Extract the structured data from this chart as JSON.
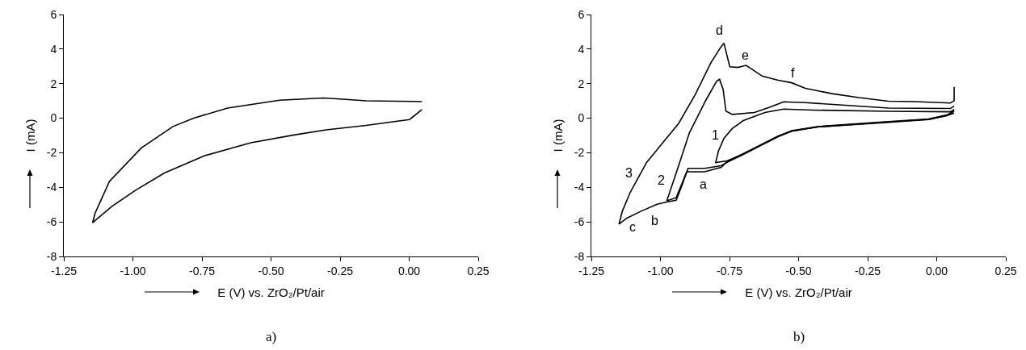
{
  "chart_data": [
    {
      "type": "line",
      "xlabel": "E (V) vs. ZrO₂/Pt/air",
      "ylabel": "I (mA)",
      "xlim": [
        -1.25,
        0.25
      ],
      "xticks": [
        -1.25,
        {
          "value": -1,
          "label": "-1.00"
        },
        -0.75,
        {
          "value": -0.5,
          "label": "-0.50"
        },
        -0.25,
        {
          "value": 0,
          "label": "0.00"
        },
        0.25
      ],
      "ylim": [
        -8,
        6
      ],
      "yticks": [
        -8,
        -6,
        -4,
        -2,
        0,
        2,
        4,
        6
      ],
      "series": [
        {
          "color": "#000000",
          "x": [
            0.046,
            -0.156,
            -0.229,
            -0.31,
            -0.469,
            -0.657,
            -0.78,
            -0.855,
            -0.97,
            -1.085,
            -1.137,
            -1.146,
            -1.075,
            -0.99,
            -0.886,
            -0.74,
            -0.573,
            -0.417,
            -0.3,
            -0.156,
            0.001,
            0.046
          ],
          "values": [
            0.96,
            1.01,
            1.09,
            1.17,
            1.04,
            0.59,
            0.0,
            -0.48,
            -1.73,
            -3.66,
            -5.5,
            -6.05,
            -5.09,
            -4.17,
            -3.17,
            -2.17,
            -1.42,
            -0.97,
            -0.67,
            -0.42,
            -0.08,
            0.5
          ]
        }
      ],
      "annotations": [
        "a)"
      ]
    },
    {
      "type": "line",
      "xlabel": "E (V) vs. ZrO₂/Pt/air",
      "ylabel": "I (mA)",
      "xlim": [
        -1.25,
        0.25
      ],
      "xticks": [
        -1.25,
        {
          "value": -1,
          "label": "-1.00"
        },
        -0.75,
        {
          "value": -0.5,
          "label": "-0.50"
        },
        -0.25,
        {
          "value": 0,
          "label": "0.00"
        },
        0.25
      ],
      "ylim": [
        -8,
        6
      ],
      "yticks": [
        -8,
        -6,
        -4,
        -2,
        0,
        2,
        4,
        6
      ],
      "series": [
        {
          "color": "#000000",
          "x": [
            0.063,
            0.039,
            -0.029,
            -0.175,
            -0.428,
            -0.525,
            -0.574,
            -0.642,
            -0.7,
            -0.759,
            -0.8,
            -0.79,
            -0.77,
            -0.74,
            -0.7,
            -0.622,
            -0.554,
            -0.45,
            -0.175,
            0.049,
            0.063
          ],
          "values": [
            0.3,
            0.17,
            -0.06,
            -0.22,
            -0.5,
            -0.74,
            -1.05,
            -1.6,
            -2.08,
            -2.47,
            -2.56,
            -1.9,
            -1.16,
            -0.6,
            -0.14,
            0.33,
            0.53,
            0.47,
            0.4,
            0.37,
            0.5
          ]
        },
        {
          "color": "#000000",
          "x": [
            0.063,
            0.039,
            -0.029,
            -0.175,
            -0.428,
            -0.525,
            -0.574,
            -0.642,
            -0.7,
            -0.759,
            -0.78,
            -0.84,
            -0.905,
            -0.925,
            -0.943,
            -0.977,
            -0.94,
            -0.895,
            -0.836,
            -0.797,
            -0.786,
            -0.773,
            -0.763,
            -0.74,
            -0.66,
            -0.603,
            -0.554,
            -0.476,
            -0.175,
            0.049,
            0.063
          ],
          "values": [
            0.4,
            0.2,
            -0.04,
            -0.2,
            -0.48,
            -0.72,
            -1.03,
            -1.58,
            -2.05,
            -2.5,
            -2.85,
            -3.1,
            -3.1,
            -3.9,
            -4.6,
            -4.78,
            -3.03,
            -0.84,
            1.03,
            2.13,
            2.25,
            1.66,
            0.41,
            0.22,
            0.33,
            0.64,
            0.95,
            0.9,
            0.59,
            0.56,
            0.7
          ]
        },
        {
          "color": "#000000",
          "x": [
            0.063,
            0.039,
            -0.029,
            -0.175,
            -0.428,
            -0.525,
            -0.574,
            -0.642,
            -0.7,
            -0.759,
            -0.78,
            -0.84,
            -0.9,
            -0.924,
            -0.943,
            -0.977,
            -1.012,
            -1.07,
            -1.12,
            -1.15,
            -1.138,
            -1.109,
            -1.05,
            -0.982,
            -0.934,
            -0.875,
            -0.817,
            -0.783,
            -0.77,
            -0.749,
            -0.72,
            -0.69,
            -0.661,
            -0.632,
            -0.574,
            -0.525,
            -0.476,
            -0.379,
            -0.282,
            -0.175,
            -0.079,
            0.049,
            0.063,
            0.063
          ],
          "values": [
            0.5,
            0.15,
            -0.08,
            -0.24,
            -0.5,
            -0.75,
            -1.07,
            -1.62,
            -2.1,
            -2.55,
            -2.75,
            -2.9,
            -2.9,
            -3.97,
            -4.75,
            -4.85,
            -4.98,
            -5.38,
            -5.77,
            -6.13,
            -5.38,
            -4.28,
            -2.56,
            -1.23,
            -0.3,
            1.34,
            3.22,
            4.08,
            4.34,
            2.98,
            2.94,
            3.06,
            2.75,
            2.44,
            2.2,
            2.05,
            1.73,
            1.42,
            1.19,
            0.98,
            0.96,
            0.88,
            1.0,
            1.81
          ]
        }
      ],
      "annotations": [
        "1",
        "2",
        "3",
        "a",
        "b",
        "c",
        "d",
        "e",
        "f",
        "b)"
      ]
    }
  ]
}
